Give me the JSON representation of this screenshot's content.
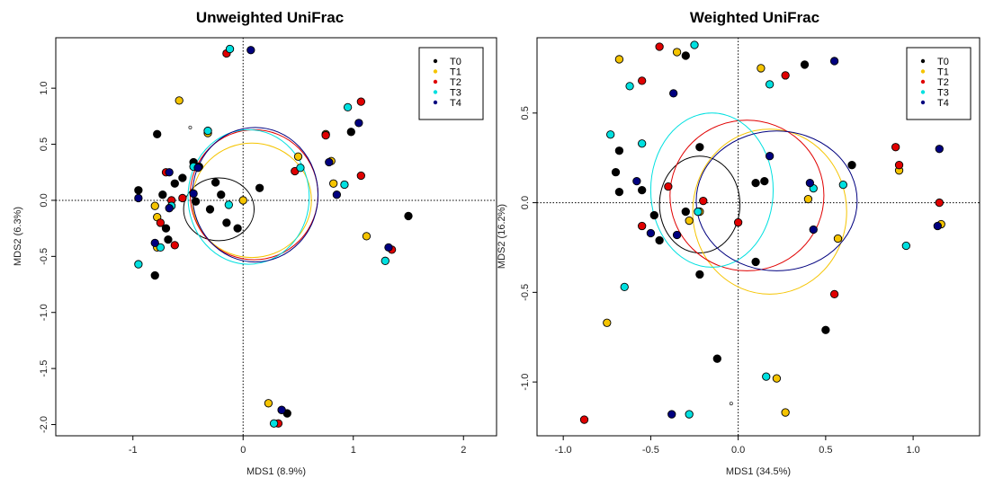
{
  "series_colors": {
    "T0": "#000000",
    "T1": "#f5c400",
    "T2": "#e00000",
    "T3": "#00e0e0",
    "T4": "#00007f"
  },
  "chart_data": [
    {
      "type": "scatter",
      "title": "Unweighted UniFrac",
      "xlabel": "MDS1 (8.9%)",
      "ylabel": "MDS2 (6.3%)",
      "xlim": [
        -1.7,
        2.3
      ],
      "ylim": [
        -2.1,
        1.45
      ],
      "xticks": [
        -1,
        0,
        1,
        2
      ],
      "yticks": [
        -2.0,
        -1.5,
        -1.0,
        -0.5,
        0.0,
        0.5,
        1.0
      ],
      "ytick_labels": [
        "-2.0",
        "-1.5",
        "-1.0",
        "-0.5",
        "0.0",
        "0.5",
        "1.0"
      ],
      "legend": [
        "T0",
        "T1",
        "T2",
        "T3",
        "T4"
      ],
      "legend_position": "top-right",
      "series": [
        {
          "name": "T0",
          "color": "#000000",
          "points": [
            [
              -0.95,
              0.09
            ],
            [
              -0.78,
              0.59
            ],
            [
              -0.73,
              0.05
            ],
            [
              -0.7,
              -0.25
            ],
            [
              -0.68,
              -0.35
            ],
            [
              -0.62,
              0.15
            ],
            [
              -0.45,
              0.34
            ],
            [
              -0.4,
              0.3
            ],
            [
              -0.3,
              -0.08
            ],
            [
              -0.25,
              0.16
            ],
            [
              -0.2,
              0.05
            ],
            [
              -0.15,
              -0.2
            ],
            [
              -0.05,
              -0.25
            ],
            [
              0.15,
              0.11
            ],
            [
              0.98,
              0.61
            ],
            [
              1.5,
              -0.14
            ],
            [
              -0.8,
              -0.67
            ],
            [
              0.35,
              -1.87
            ],
            [
              0.4,
              -1.9
            ],
            [
              -0.55,
              0.2
            ],
            [
              -0.43,
              -0.01
            ]
          ]
        },
        {
          "name": "T1",
          "color": "#f5c400",
          "points": [
            -0.58,
            0.89,
            -0.8,
            -0.05,
            -0.78,
            -0.15,
            -0.32,
            0.6,
            0.0,
            0.0,
            0.5,
            0.39,
            0.75,
            0.59,
            0.82,
            0.15,
            1.12,
            -0.32,
            0.23,
            -1.81,
            -0.78,
            -0.42,
            0.8,
            0.35
          ]
        },
        {
          "name": "T2",
          "color": "#e00000",
          "points": [
            [
              -0.15,
              1.31
            ],
            [
              -0.7,
              0.25
            ],
            [
              -0.75,
              -0.2
            ],
            [
              -0.65,
              0.0
            ],
            [
              -0.55,
              0.02
            ],
            [
              -0.62,
              -0.4
            ],
            [
              0.47,
              0.26
            ],
            [
              0.75,
              0.58
            ],
            [
              1.07,
              0.88
            ],
            [
              1.07,
              0.22
            ],
            [
              1.35,
              -0.44
            ],
            [
              0.32,
              -1.99
            ]
          ]
        },
        {
          "name": "T3",
          "color": "#00e0e0",
          "points": [
            [
              -0.12,
              1.35
            ],
            [
              -0.95,
              -0.57
            ],
            [
              -0.75,
              -0.42
            ],
            [
              -0.65,
              -0.05
            ],
            [
              -0.45,
              0.3
            ],
            [
              -0.32,
              0.62
            ],
            [
              -0.13,
              -0.04
            ],
            [
              0.52,
              0.29
            ],
            [
              0.92,
              0.14
            ],
            [
              0.95,
              0.83
            ],
            [
              1.29,
              -0.54
            ],
            [
              0.28,
              -1.99
            ]
          ]
        },
        {
          "name": "T4",
          "color": "#00007f",
          "points": [
            [
              0.07,
              1.34
            ],
            [
              -0.95,
              0.02
            ],
            [
              -0.8,
              -0.38
            ],
            [
              -0.67,
              -0.07
            ],
            [
              -0.45,
              0.06
            ],
            [
              -0.41,
              0.29
            ],
            [
              -0.67,
              0.25
            ],
            [
              0.78,
              0.34
            ],
            [
              0.85,
              0.05
            ],
            [
              1.05,
              0.69
            ],
            [
              1.32,
              -0.42
            ],
            [
              0.35,
              -1.87
            ]
          ]
        }
      ],
      "ellipses": [
        {
          "name": "T0",
          "color": "#000000",
          "cx": -0.22,
          "cy": -0.08,
          "rx": 0.32,
          "ry": 0.28
        },
        {
          "name": "T1",
          "color": "#f5c400",
          "cx": 0.08,
          "cy": 0.0,
          "rx": 0.54,
          "ry": 0.51
        },
        {
          "name": "T2",
          "color": "#e00000",
          "cx": 0.1,
          "cy": 0.05,
          "rx": 0.58,
          "ry": 0.58
        },
        {
          "name": "T3",
          "color": "#00e0e0",
          "cx": 0.05,
          "cy": 0.03,
          "rx": 0.55,
          "ry": 0.6
        },
        {
          "name": "T4",
          "color": "#00007f",
          "cx": 0.11,
          "cy": 0.05,
          "rx": 0.57,
          "ry": 0.6
        }
      ],
      "open_points": [
        [
          -0.48,
          0.65
        ]
      ]
    },
    {
      "type": "scatter",
      "title": "Weighted UniFrac",
      "xlabel": "MDS1 (34.5%)",
      "ylabel": "MDS2 (16.2%)",
      "xlim": [
        -1.15,
        1.38
      ],
      "ylim": [
        -1.3,
        0.92
      ],
      "xticks": [
        -1.0,
        -0.5,
        0.0,
        0.5,
        1.0
      ],
      "xtick_labels": [
        "-1.0",
        "-0.5",
        "0.0",
        "0.5",
        "1.0"
      ],
      "yticks": [
        -1.0,
        -0.5,
        0.0,
        0.5
      ],
      "ytick_labels": [
        "-1.0",
        "-0.5",
        "0.0",
        "0.5"
      ],
      "legend": [
        "T0",
        "T1",
        "T2",
        "T3",
        "T4"
      ],
      "legend_position": "top-right",
      "series": [
        {
          "name": "T0",
          "color": "#000000",
          "points": [
            [
              -0.3,
              0.82
            ],
            [
              -0.68,
              0.29
            ],
            [
              -0.7,
              0.17
            ],
            [
              -0.68,
              0.06
            ],
            [
              -0.55,
              0.07
            ],
            [
              -0.48,
              -0.07
            ],
            [
              -0.45,
              -0.21
            ],
            [
              -0.3,
              -0.05
            ],
            [
              -0.22,
              0.31
            ],
            [
              -0.22,
              -0.4
            ],
            [
              0.1,
              0.11
            ],
            [
              0.15,
              0.12
            ],
            [
              0.38,
              0.77
            ],
            [
              0.65,
              0.21
            ],
            [
              0.1,
              -0.33
            ],
            [
              0.5,
              -0.71
            ],
            [
              -0.12,
              -0.87
            ]
          ]
        },
        {
          "name": "T1",
          "color": "#f5c400",
          "points": [
            [
              -0.68,
              0.8
            ],
            [
              -0.35,
              0.84
            ],
            [
              0.13,
              0.75
            ],
            [
              -0.28,
              -0.1
            ],
            [
              -0.22,
              -0.05
            ],
            [
              0.4,
              0.02
            ],
            [
              0.57,
              -0.2
            ],
            [
              0.92,
              0.18
            ],
            [
              1.16,
              -0.12
            ],
            [
              -0.75,
              -0.67
            ],
            [
              0.22,
              -0.98
            ],
            [
              0.27,
              -1.17
            ]
          ]
        },
        {
          "name": "T2",
          "color": "#e00000",
          "points": [
            [
              -0.45,
              0.87
            ],
            [
              -0.55,
              0.68
            ],
            [
              -0.4,
              0.09
            ],
            [
              -0.55,
              -0.13
            ],
            [
              -0.2,
              0.01
            ],
            [
              -0.0,
              -0.11
            ],
            [
              0.27,
              0.71
            ],
            [
              0.9,
              0.31
            ],
            [
              0.92,
              0.21
            ],
            [
              1.15,
              0.0
            ],
            [
              0.55,
              -0.51
            ],
            [
              -0.88,
              -1.21
            ]
          ]
        },
        {
          "name": "T3",
          "color": "#00e0e0",
          "points": [
            [
              -0.25,
              0.88
            ],
            [
              -0.62,
              0.65
            ],
            [
              -0.73,
              0.38
            ],
            [
              -0.55,
              0.33
            ],
            [
              -0.23,
              -0.05
            ],
            [
              0.18,
              0.66
            ],
            [
              0.43,
              0.08
            ],
            [
              0.6,
              0.1
            ],
            [
              0.96,
              -0.24
            ],
            [
              -0.65,
              -0.47
            ],
            [
              0.16,
              -0.97
            ],
            [
              -0.28,
              -1.18
            ]
          ]
        },
        {
          "name": "T4",
          "color": "#00007f",
          "points": [
            [
              -0.37,
              0.61
            ],
            [
              -0.58,
              0.12
            ],
            [
              -0.5,
              -0.17
            ],
            [
              -0.35,
              -0.18
            ],
            [
              0.18,
              0.26
            ],
            [
              0.41,
              0.11
            ],
            [
              0.55,
              0.79
            ],
            [
              0.43,
              -0.15
            ],
            [
              1.15,
              0.3
            ],
            [
              1.14,
              -0.13
            ],
            [
              -0.38,
              -1.18
            ]
          ]
        }
      ],
      "ellipses": [
        {
          "name": "T0",
          "color": "#000000",
          "cx": -0.22,
          "cy": -0.01,
          "rx": 0.23,
          "ry": 0.27
        },
        {
          "name": "T1",
          "color": "#f5c400",
          "cx": 0.18,
          "cy": -0.05,
          "rx": 0.44,
          "ry": 0.46
        },
        {
          "name": "T2",
          "color": "#e00000",
          "cx": 0.05,
          "cy": 0.04,
          "rx": 0.44,
          "ry": 0.42
        },
        {
          "name": "T3",
          "color": "#00e0e0",
          "cx": -0.15,
          "cy": 0.07,
          "rx": 0.35,
          "ry": 0.43
        },
        {
          "name": "T4",
          "color": "#00007f",
          "cx": 0.22,
          "cy": 0.01,
          "rx": 0.46,
          "ry": 0.39
        }
      ],
      "open_points": [
        [
          -0.04,
          -1.12
        ]
      ]
    }
  ]
}
